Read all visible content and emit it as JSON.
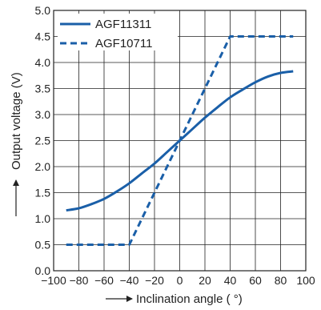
{
  "chart_data": {
    "type": "line",
    "xlabel": "Inclination angle ( °)",
    "ylabel": "Output voltage (V)",
    "xlim": [
      -100,
      100
    ],
    "ylim": [
      0.0,
      5.0
    ],
    "x_ticks": [
      "−100",
      "−80",
      "−60",
      "−40",
      "−20",
      "0",
      "20",
      "40",
      "60",
      "80",
      "100"
    ],
    "y_ticks": [
      "0.0",
      "0.5",
      "1.0",
      "1.5",
      "2.0",
      "2.5",
      "3.0",
      "3.5",
      "4.0",
      "4.5",
      "5.0"
    ],
    "grid": true,
    "legend_position": "top-left",
    "line_color": "#1a5fa8",
    "series": [
      {
        "name": "AGF11311",
        "style": "solid",
        "x": [
          -90,
          -80,
          -70,
          -60,
          -50,
          -40,
          -30,
          -20,
          -10,
          0,
          10,
          20,
          30,
          40,
          50,
          60,
          70,
          80,
          90
        ],
        "y": [
          1.16,
          1.2,
          1.28,
          1.38,
          1.52,
          1.68,
          1.87,
          2.06,
          2.28,
          2.5,
          2.72,
          2.94,
          3.14,
          3.33,
          3.48,
          3.62,
          3.73,
          3.8,
          3.83
        ]
      },
      {
        "name": "AGF10711",
        "style": "dashed",
        "x": [
          -90,
          -45,
          -40,
          0,
          40,
          45,
          90
        ],
        "y": [
          0.5,
          0.5,
          0.5,
          2.5,
          4.5,
          4.5,
          4.5
        ]
      }
    ]
  }
}
